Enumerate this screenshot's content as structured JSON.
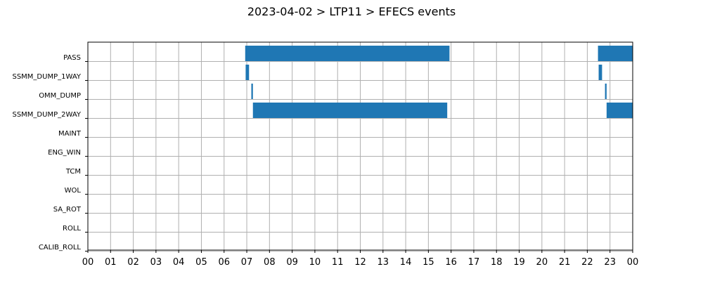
{
  "chart_data": {
    "type": "bar",
    "orientation": "horizontal-timeline",
    "title": "2023-04-02 > LTP11 > EFECS events",
    "xlabel": "",
    "ylabel": "",
    "xlim": [
      0,
      24
    ],
    "x_ticks": [
      "00",
      "01",
      "02",
      "03",
      "04",
      "05",
      "06",
      "07",
      "08",
      "09",
      "10",
      "11",
      "12",
      "13",
      "14",
      "15",
      "16",
      "17",
      "18",
      "19",
      "20",
      "21",
      "22",
      "23",
      "00"
    ],
    "categories": [
      "PASS",
      "SSMM_DUMP_1WAY",
      "OMM_DUMP",
      "SSMM_DUMP_2WAY",
      "MAINT",
      "ENG_WIN",
      "TCM",
      "WOL",
      "SA_ROT",
      "ROLL",
      "CALIB_ROLL"
    ],
    "grid": true,
    "bar_color": "#1f77b4",
    "events": [
      {
        "category": "PASS",
        "start": 6.93,
        "end": 15.93
      },
      {
        "category": "PASS",
        "start": 22.47,
        "end": 24.0
      },
      {
        "category": "SSMM_DUMP_1WAY",
        "start": 6.95,
        "end": 7.1
      },
      {
        "category": "SSMM_DUMP_1WAY",
        "start": 22.5,
        "end": 22.65
      },
      {
        "category": "OMM_DUMP",
        "start": 7.2,
        "end": 7.27
      },
      {
        "category": "OMM_DUMP",
        "start": 22.78,
        "end": 22.85
      },
      {
        "category": "SSMM_DUMP_2WAY",
        "start": 7.27,
        "end": 15.83
      },
      {
        "category": "SSMM_DUMP_2WAY",
        "start": 22.85,
        "end": 24.0
      }
    ]
  }
}
